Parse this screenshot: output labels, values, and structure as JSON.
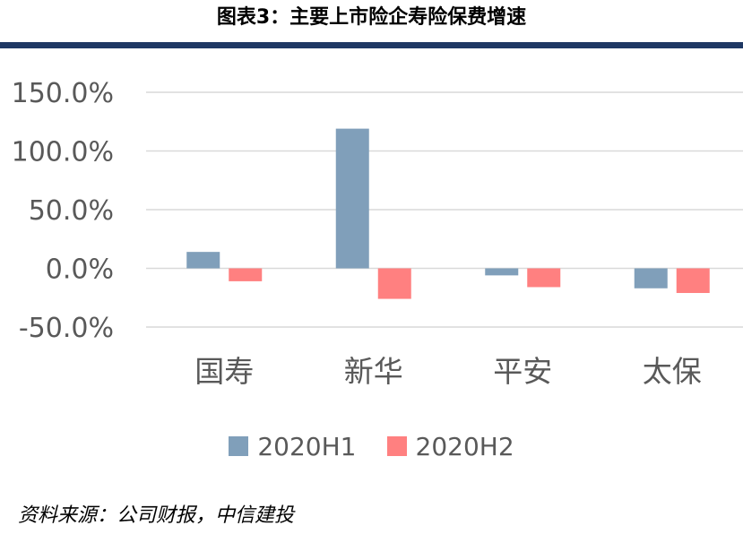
{
  "title": "图表3：主要上市险企寿险保费增速",
  "source": "资料来源：公司财报，中信建投",
  "colors": {
    "h1": "#809fba",
    "h2": "#ff8080",
    "rule": "#1f3864",
    "grid": "#d9d9d9"
  },
  "chart_data": {
    "type": "bar",
    "title": "图表3：主要上市险企寿险保费增速",
    "categories": [
      "国寿",
      "新华",
      "平安",
      "太保"
    ],
    "series": [
      {
        "name": "2020H1",
        "values": [
          14.0,
          119.0,
          -6.0,
          -17.0
        ]
      },
      {
        "name": "2020H2",
        "values": [
          -11.0,
          -26.0,
          -16.0,
          -21.0
        ]
      }
    ],
    "ylim": [
      -50,
      150
    ],
    "yticks": [
      150,
      100,
      50,
      0,
      -50
    ],
    "ytick_labels": [
      "150.0%",
      "100.0%",
      "50.0%",
      "0.0%",
      "-50.0%"
    ],
    "grid": true,
    "legend": "bottom",
    "xlabel": "",
    "ylabel": ""
  }
}
